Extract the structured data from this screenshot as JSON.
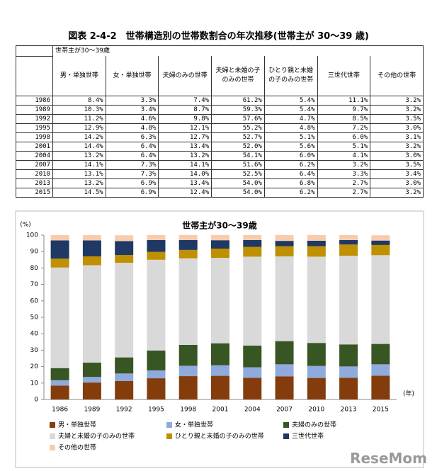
{
  "header": {
    "title": "図表 2-4-2　世帯構造別の世帯数割合の年次推移(世帯主が 30～39 歳)"
  },
  "table": {
    "group_header": "世帯主が30～39歳",
    "columns": [
      "男・単独世帯",
      "女・単独世帯",
      "夫婦のみの世帯",
      "夫婦と未婚の子のみの世帯",
      "ひとり親と未婚の子のみの世帯",
      "三世代世帯",
      "その他の世帯"
    ],
    "rows": [
      [
        "1986",
        "8.4%",
        "3.3%",
        "7.4%",
        "61.2%",
        "5.4%",
        "11.1%",
        "3.2%"
      ],
      [
        "1989",
        "10.3%",
        "3.4%",
        "8.7%",
        "59.3%",
        "5.4%",
        "9.7%",
        "3.2%"
      ],
      [
        "1992",
        "11.2%",
        "4.6%",
        "9.8%",
        "57.6%",
        "4.7%",
        "8.5%",
        "3.5%"
      ],
      [
        "1995",
        "12.9%",
        "4.8%",
        "12.1%",
        "55.2%",
        "4.8%",
        "7.2%",
        "3.0%"
      ],
      [
        "1998",
        "14.2%",
        "6.3%",
        "12.7%",
        "52.7%",
        "5.1%",
        "6.0%",
        "3.1%"
      ],
      [
        "2001",
        "14.4%",
        "6.4%",
        "13.4%",
        "52.0%",
        "5.6%",
        "5.1%",
        "3.2%"
      ],
      [
        "2004",
        "13.2%",
        "6.4%",
        "13.2%",
        "54.1%",
        "6.0%",
        "4.1%",
        "3.0%"
      ],
      [
        "2007",
        "14.1%",
        "7.3%",
        "14.1%",
        "51.6%",
        "6.2%",
        "3.2%",
        "3.5%"
      ],
      [
        "2010",
        "13.1%",
        "7.3%",
        "14.0%",
        "52.5%",
        "6.4%",
        "3.3%",
        "3.4%"
      ],
      [
        "2013",
        "13.2%",
        "6.9%",
        "13.4%",
        "54.0%",
        "6.8%",
        "2.7%",
        "3.0%"
      ],
      [
        "2015",
        "14.5%",
        "6.9%",
        "12.4%",
        "54.0%",
        "6.2%",
        "2.7%",
        "3.2%"
      ]
    ]
  },
  "chart_data": {
    "type": "stacked_bar",
    "title": "世帯主が30～39歳",
    "y_label": "(%)",
    "x_label": "(年)",
    "categories": [
      "1986",
      "1989",
      "1992",
      "1995",
      "1998",
      "2001",
      "2004",
      "2007",
      "2010",
      "2013",
      "2015"
    ],
    "ylim": [
      0,
      100
    ],
    "yticks": [
      0,
      10,
      20,
      30,
      40,
      50,
      60,
      70,
      80,
      90,
      100
    ],
    "grid": false,
    "series": [
      {
        "name": "男・単独世帯",
        "color": "#843c0c",
        "values": [
          8.4,
          10.3,
          11.2,
          12.9,
          14.2,
          14.4,
          13.2,
          14.1,
          13.1,
          13.2,
          14.5
        ]
      },
      {
        "name": "女・単独世帯",
        "color": "#8faadc",
        "values": [
          3.3,
          3.4,
          4.6,
          4.8,
          6.3,
          6.4,
          6.4,
          7.3,
          7.3,
          6.9,
          6.9
        ]
      },
      {
        "name": "夫婦のみの世帯",
        "color": "#375623",
        "values": [
          7.4,
          8.7,
          9.8,
          12.1,
          12.7,
          13.4,
          13.2,
          14.1,
          14.0,
          13.4,
          12.4
        ]
      },
      {
        "name": "夫婦と未婚の子のみの世帯",
        "color": "#d9d9d9",
        "values": [
          61.2,
          59.3,
          57.6,
          55.2,
          52.7,
          52.0,
          54.1,
          51.6,
          52.5,
          54.0,
          54.0
        ]
      },
      {
        "name": "ひとり親と未婚の子のみの世帯",
        "color": "#bf9000",
        "values": [
          5.4,
          5.4,
          4.7,
          4.8,
          5.1,
          5.6,
          6.0,
          6.2,
          6.4,
          6.8,
          6.2
        ]
      },
      {
        "name": "三世代世帯",
        "color": "#1f3864",
        "values": [
          11.1,
          9.7,
          8.5,
          7.2,
          6.0,
          5.1,
          4.1,
          3.2,
          3.3,
          2.7,
          2.7
        ]
      },
      {
        "name": "その他の世帯",
        "color": "#f8cbad",
        "values": [
          3.2,
          3.2,
          3.5,
          3.0,
          3.1,
          3.2,
          3.0,
          3.5,
          3.4,
          3.0,
          3.2
        ]
      }
    ]
  },
  "watermark": "ReseMom"
}
